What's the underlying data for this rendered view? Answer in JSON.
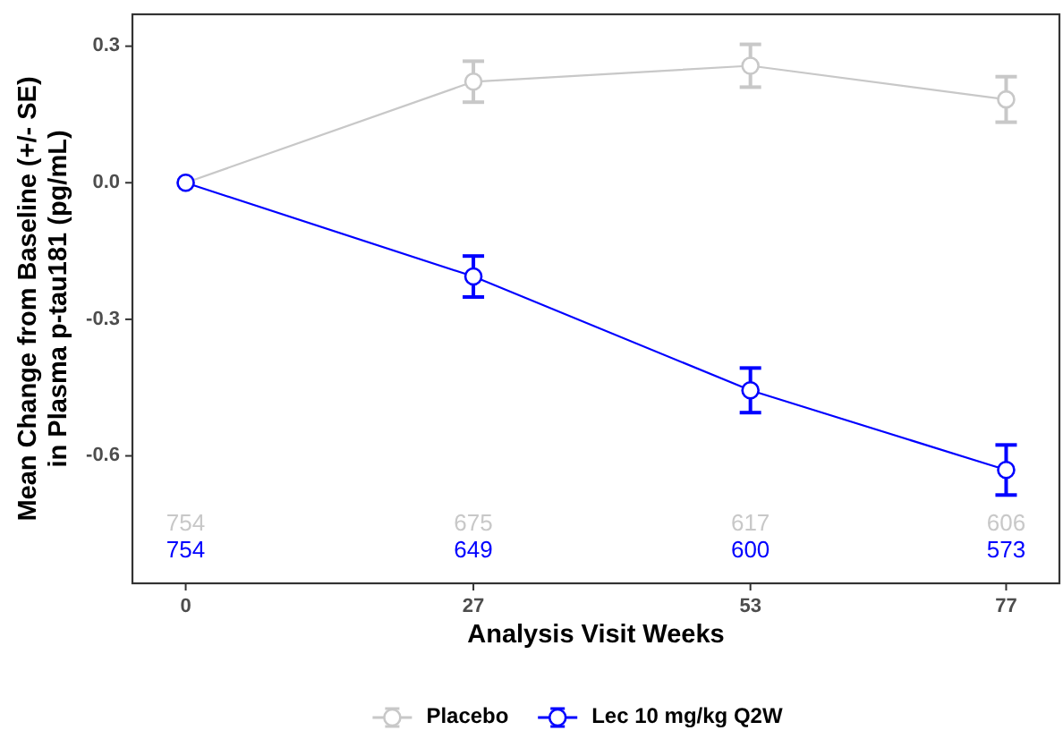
{
  "chart_data": {
    "type": "line",
    "xlabel": "Analysis Visit Weeks",
    "ylabel": "Mean Change from Baseline (+/- SE)\nin Plasma p-tau181 (pg/mL)",
    "x": [
      0,
      27,
      53,
      77
    ],
    "xlim": [
      -5,
      82
    ],
    "xticks": [
      0,
      27,
      53,
      77
    ],
    "ylim": [
      -0.88,
      0.37
    ],
    "yticks": [
      0.3,
      {
        "value": 0,
        "label": "0.0"
      },
      -0.3,
      -0.6
    ],
    "grid": false,
    "legend": "bottom",
    "marker": "circle",
    "line_style": "solid",
    "series": [
      {
        "name": "Placebo",
        "color": "#c8c8c8",
        "values": [
          0,
          0.222,
          0.257,
          0.183
        ],
        "errors": [
          null,
          0.045,
          0.047,
          0.05
        ]
      },
      {
        "name": "Lec 10 mg/kg Q2W",
        "color": "#0000ff",
        "values": [
          0,
          -0.206,
          -0.456,
          -0.631
        ],
        "errors": [
          null,
          0.045,
          0.049,
          0.055
        ]
      }
    ],
    "annotations": [
      "754",
      "675",
      "617",
      "606",
      "754",
      "649",
      "600",
      "573"
    ]
  }
}
